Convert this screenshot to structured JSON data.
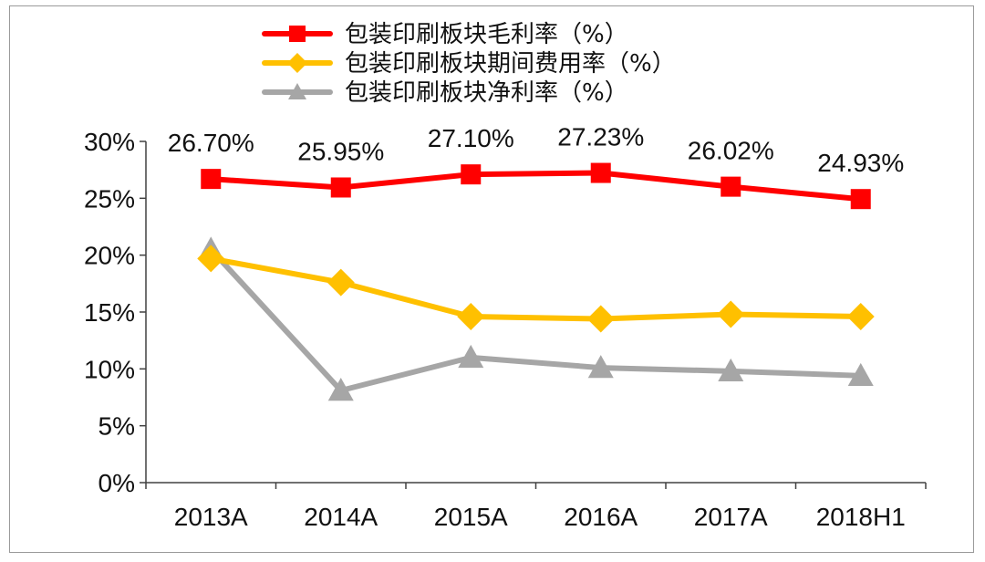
{
  "chart_data": {
    "type": "line",
    "categories": [
      "2013A",
      "2014A",
      "2015A",
      "2016A",
      "2017A",
      "2018H1"
    ],
    "series": [
      {
        "name": "包装印刷板块毛利率（%）",
        "values": [
          26.7,
          25.95,
          27.1,
          27.23,
          26.02,
          24.93
        ],
        "color": "#ff0000",
        "marker": "square",
        "labels": [
          "26.70%",
          "25.95%",
          "27.10%",
          "27.23%",
          "26.02%",
          "24.93%"
        ]
      },
      {
        "name": "包装印刷板块期间费用率（%）",
        "values": [
          19.7,
          17.6,
          14.6,
          14.4,
          14.8,
          14.6
        ],
        "color": "#ffc000",
        "marker": "diamond"
      },
      {
        "name": "包装印刷板块净利率（%）",
        "values": [
          20.5,
          8.1,
          11.0,
          10.1,
          9.8,
          9.4
        ],
        "color": "#a6a6a6",
        "marker": "triangle"
      }
    ],
    "ylim": [
      0,
      30
    ],
    "yticks": [
      "0%",
      "5%",
      "10%",
      "15%",
      "20%",
      "25%",
      "30%"
    ],
    "grid": false,
    "legend_position": "top"
  }
}
